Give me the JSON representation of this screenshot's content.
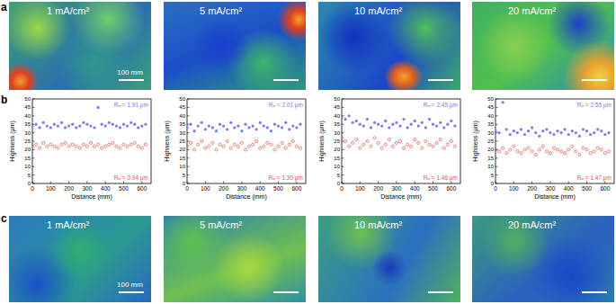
{
  "panel_labels": [
    "a",
    "b",
    "c"
  ],
  "images_a": {
    "labels": [
      "1 mA/cm²",
      "5 mA/cm²",
      "10 mA/cm²",
      "20 mA/cm²"
    ],
    "scale_bar": "100 mm"
  },
  "images_c": {
    "labels": [
      "1 mA/cm²",
      "5 mA/cm²",
      "10 mA/cm²",
      "20 mA/cm²"
    ],
    "scale_bar": "100 mm"
  },
  "chart_data": [
    {
      "type": "scatter",
      "x_label": "Distance (mm)",
      "y_label": "Highness (μm)",
      "x": [
        0,
        20,
        40,
        60,
        80,
        100,
        120,
        140,
        160,
        180,
        200,
        220,
        240,
        260,
        280,
        300,
        320,
        340,
        360,
        380,
        400,
        420,
        440,
        460,
        480,
        500,
        520,
        540,
        560,
        580,
        600,
        620
      ],
      "series": [
        {
          "color": "#7b7be8",
          "marker": "circle",
          "values": [
            34,
            35,
            33,
            36,
            34,
            33,
            35,
            34,
            36,
            33,
            34,
            35,
            33,
            34,
            36,
            35,
            34,
            33,
            45,
            35,
            34,
            36,
            35,
            34,
            33,
            35,
            34,
            36,
            35,
            33,
            34,
            35
          ]
        },
        {
          "color": "#e8504a",
          "marker": "open-circle",
          "values": [
            22,
            23,
            21,
            24,
            22,
            23,
            22,
            21,
            23,
            24,
            22,
            23,
            22,
            21,
            23,
            22,
            24,
            22,
            23,
            21,
            22,
            23,
            24,
            22,
            21,
            23,
            22,
            23,
            24,
            22,
            21,
            23
          ]
        }
      ],
      "annotations": [
        "Rₐ = 1.91 μm",
        "Rₐ = 0.94 μm"
      ],
      "xlim": [
        0,
        650
      ],
      "ylim": [
        0,
        50
      ],
      "xticks": [
        0,
        100,
        200,
        300,
        400,
        500,
        600
      ],
      "yticks": [
        0,
        5,
        10,
        15,
        20,
        25,
        30,
        35,
        40,
        45,
        50
      ]
    },
    {
      "type": "scatter",
      "x_label": "Distance (mm)",
      "y_label": "Highness (μm)",
      "x": [
        0,
        20,
        40,
        60,
        80,
        100,
        120,
        140,
        160,
        180,
        200,
        220,
        240,
        260,
        280,
        300,
        320,
        340,
        360,
        380,
        400,
        420,
        440,
        460,
        480,
        500,
        520,
        540,
        560,
        580,
        600,
        620
      ],
      "series": [
        {
          "color": "#7b7be8",
          "marker": "circle",
          "values": [
            33,
            35,
            31,
            34,
            36,
            32,
            34,
            33,
            31,
            35,
            34,
            32,
            36,
            33,
            34,
            31,
            35,
            33,
            34,
            32,
            36,
            34,
            33,
            31,
            35,
            34,
            33,
            36,
            32,
            34,
            33,
            35
          ]
        },
        {
          "color": "#e8504a",
          "marker": "open-circle",
          "values": [
            22,
            24,
            20,
            23,
            25,
            21,
            22,
            24,
            20,
            23,
            22,
            25,
            21,
            23,
            22,
            24,
            20,
            22,
            23,
            25,
            21,
            22,
            24,
            23,
            20,
            22,
            24,
            21,
            23,
            25,
            22,
            21
          ]
        }
      ],
      "annotations": [
        "Rₐ = 2.01 μm",
        "Rₐ = 1.30 μm"
      ],
      "xlim": [
        0,
        650
      ],
      "ylim": [
        0,
        50
      ],
      "xticks": [
        0,
        100,
        200,
        300,
        400,
        500,
        600
      ],
      "yticks": [
        0,
        5,
        10,
        15,
        20,
        25,
        30,
        35,
        40,
        45,
        50
      ]
    },
    {
      "type": "scatter",
      "x_label": "Distance (mm)",
      "y_label": "Highness (μm)",
      "x": [
        0,
        20,
        40,
        60,
        80,
        100,
        120,
        140,
        160,
        180,
        200,
        220,
        240,
        260,
        280,
        300,
        320,
        340,
        360,
        380,
        400,
        420,
        440,
        460,
        480,
        500,
        520,
        540,
        560,
        580,
        600,
        620
      ],
      "series": [
        {
          "color": "#7b7be8",
          "marker": "circle",
          "values": [
            39,
            38,
            40,
            36,
            37,
            35,
            34,
            38,
            33,
            36,
            35,
            34,
            37,
            33,
            35,
            36,
            34,
            38,
            33,
            35,
            37,
            34,
            36,
            33,
            38,
            35,
            34,
            36,
            33,
            35,
            37,
            34
          ]
        },
        {
          "color": "#e8504a",
          "marker": "open-circle",
          "values": [
            27,
            25,
            22,
            24,
            26,
            21,
            23,
            25,
            22,
            27,
            24,
            21,
            23,
            26,
            22,
            24,
            25,
            21,
            23,
            22,
            26,
            24,
            21,
            25,
            23,
            22,
            24,
            26,
            21,
            23,
            25,
            22
          ]
        }
      ],
      "annotations": [
        "Rₐ = 2.45 μm",
        "Rₐ = 1.46 μm"
      ],
      "xlim": [
        0,
        650
      ],
      "ylim": [
        0,
        50
      ],
      "xticks": [
        0,
        100,
        200,
        300,
        400,
        500,
        600
      ],
      "yticks": [
        0,
        5,
        10,
        15,
        20,
        25,
        30,
        35,
        40,
        45,
        50
      ]
    },
    {
      "type": "scatter",
      "x_label": "Distance (mm)",
      "y_label": "Highness (μm)",
      "x": [
        0,
        20,
        40,
        60,
        80,
        100,
        120,
        140,
        160,
        180,
        200,
        220,
        240,
        260,
        280,
        300,
        320,
        340,
        360,
        380,
        400,
        420,
        440,
        460,
        480,
        500,
        520,
        540,
        560,
        580,
        600,
        620
      ],
      "series": [
        {
          "color": "#7b7be8",
          "marker": "circle",
          "values": [
            31,
            30,
            48,
            32,
            29,
            31,
            30,
            32,
            29,
            31,
            33,
            30,
            28,
            31,
            32,
            30,
            29,
            31,
            30,
            32,
            29,
            31,
            30,
            28,
            32,
            31,
            29,
            30,
            32,
            31,
            29,
            30
          ]
        },
        {
          "color": "#e8504a",
          "marker": "open-circle",
          "values": [
            20,
            19,
            21,
            18,
            20,
            22,
            19,
            18,
            20,
            21,
            19,
            17,
            20,
            22,
            19,
            18,
            21,
            20,
            19,
            18,
            20,
            22,
            19,
            17,
            21,
            20,
            18,
            19,
            21,
            20,
            18,
            19
          ]
        }
      ],
      "annotations": [
        "Rₐ = 2.55 μm",
        "Rₐ = 1.47 μm"
      ],
      "xlim": [
        0,
        650
      ],
      "ylim": [
        0,
        50
      ],
      "xticks": [
        0,
        100,
        200,
        300,
        400,
        500,
        600
      ],
      "yticks": [
        0,
        5,
        10,
        15,
        20,
        25,
        30,
        35,
        40,
        45,
        50
      ]
    }
  ]
}
